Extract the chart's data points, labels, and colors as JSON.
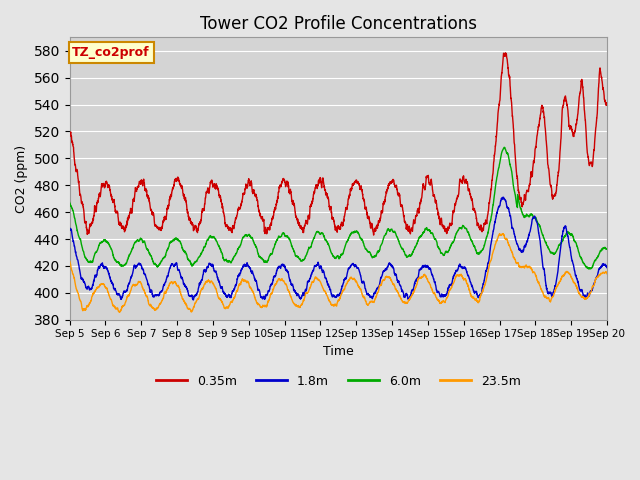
{
  "title": "Tower CO2 Profile Concentrations",
  "xlabel": "Time",
  "ylabel": "CO2 (ppm)",
  "ylim": [
    380,
    590
  ],
  "yticks": [
    380,
    400,
    420,
    440,
    460,
    480,
    500,
    520,
    540,
    560,
    580
  ],
  "colors": {
    "0.35m": "#cc0000",
    "1.8m": "#0000cc",
    "6.0m": "#00aa00",
    "23.5m": "#ff9900"
  },
  "legend_label": "TZ_co2prof",
  "legend_box_color": "#ffffcc",
  "legend_box_edge": "#cc8800",
  "bg_color": "#e5e5e5",
  "plot_bg_color": "#d4d4d4",
  "grid_color": "#ffffff",
  "n_points": 3600,
  "line_width": 1.0,
  "figwidth": 6.4,
  "figheight": 4.8,
  "dpi": 100
}
